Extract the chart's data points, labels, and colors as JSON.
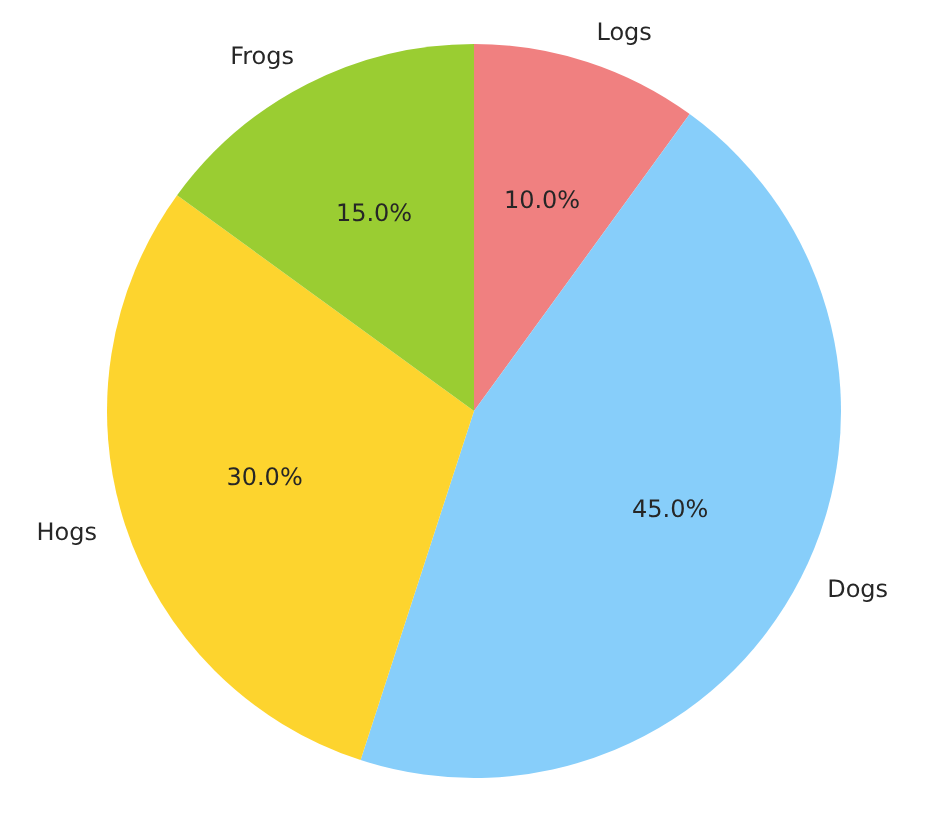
{
  "chart_data": {
    "type": "pie",
    "categories": [
      "Logs",
      "Dogs",
      "Hogs",
      "Frogs"
    ],
    "values": [
      10,
      45,
      30,
      15
    ],
    "colors": [
      "#f08080",
      "#87cefa",
      "#fdd42e",
      "#9acd32"
    ],
    "value_labels": [
      "10.0%",
      "45.0%",
      "30.0%",
      "15.0%"
    ],
    "legend": false
  }
}
